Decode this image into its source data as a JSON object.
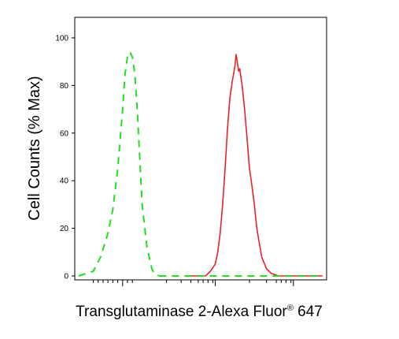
{
  "chart_data": {
    "type": "line",
    "xlabel": "Transglutaminase 2-Alexa Fluor",
    "xlabel_superscript": "®",
    "xlabel_suffix": " 647",
    "ylabel": "Cell Counts (% Max)",
    "ylim": [
      0,
      105
    ],
    "xlim": [
      0,
      1
    ],
    "yticks": [
      0,
      20,
      40,
      60,
      80,
      100
    ],
    "grid": false,
    "legend": "none",
    "series": [
      {
        "color": "#22dd22",
        "style": "dashed",
        "x": [
          0.0,
          0.06,
          0.09,
          0.12,
          0.14,
          0.16,
          0.18,
          0.19,
          0.2,
          0.21,
          0.22,
          0.23,
          0.24,
          0.25,
          0.26,
          0.28,
          0.3,
          0.31,
          0.33
        ],
        "y": [
          0,
          2,
          8,
          18,
          28,
          45,
          70,
          85,
          92,
          94,
          92,
          85,
          70,
          50,
          30,
          12,
          3,
          1,
          0
        ]
      },
      {
        "color": "#ee2222",
        "style": "solid",
        "x": [
          0.52,
          0.54,
          0.56,
          0.57,
          0.58,
          0.59,
          0.6,
          0.61,
          0.62,
          0.63,
          0.635,
          0.64,
          0.645,
          0.65,
          0.655,
          0.66,
          0.67,
          0.68,
          0.69,
          0.7,
          0.71,
          0.72,
          0.73,
          0.75,
          0.77,
          0.79,
          0.82
        ],
        "y": [
          0,
          2,
          5,
          10,
          18,
          30,
          45,
          62,
          75,
          82,
          85,
          88,
          93,
          90,
          86,
          87,
          80,
          70,
          58,
          45,
          38,
          30,
          20,
          8,
          3,
          1,
          0
        ]
      },
      {
        "color": "#ee2222",
        "style": "solid",
        "x": [
          0.46,
          0.52
        ],
        "y": [
          0,
          0
        ]
      },
      {
        "color": "#ee2222",
        "style": "solid",
        "x": [
          0.82,
          1.0
        ],
        "y": [
          0,
          0
        ]
      },
      {
        "color": "#22dd22",
        "style": "dashed",
        "x": [
          0.33,
          1.0
        ],
        "y": [
          0,
          0
        ]
      }
    ]
  }
}
